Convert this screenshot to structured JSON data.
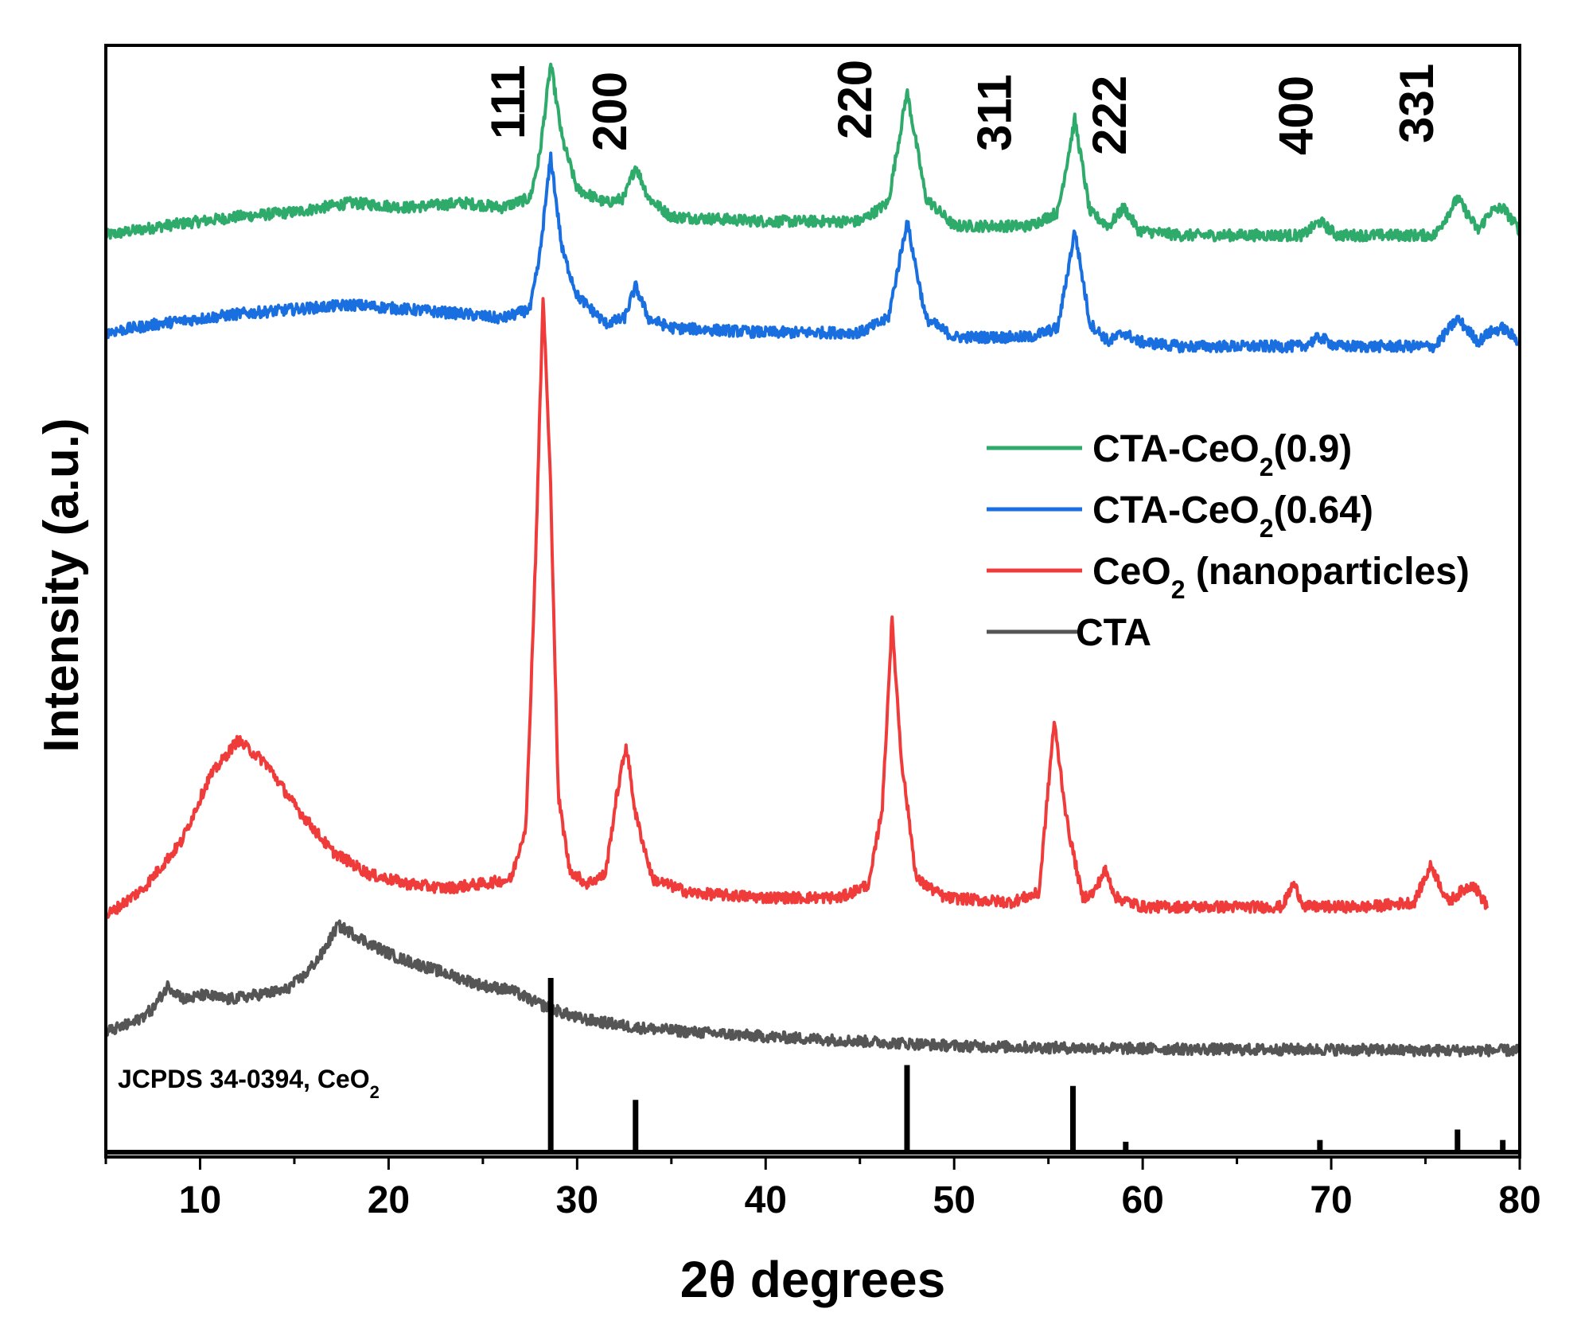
{
  "chart_data": {
    "type": "line",
    "title": "",
    "xlabel": "2θ degrees",
    "ylabel": "Intensity (a.u.)",
    "xlim": [
      5,
      80
    ],
    "ylim": [
      0,
      12
    ],
    "xticks": [
      10,
      20,
      30,
      40,
      50,
      60,
      70,
      80
    ],
    "xtick_labels": [
      "10",
      "20",
      "30",
      "40",
      "50",
      "60",
      "70",
      "80"
    ],
    "y_tick_labels_shown": false,
    "legend_position": "right",
    "hkl_labels": [
      {
        "label": "111",
        "x": 27.2
      },
      {
        "label": "200",
        "x": 32.6
      },
      {
        "label": "220",
        "x": 45.6
      },
      {
        "label": "311",
        "x": 53.0
      },
      {
        "label": "222",
        "x": 59.1
      },
      {
        "label": "400",
        "x": 69.0
      },
      {
        "label": "331",
        "x": 75.4
      }
    ],
    "series": [
      {
        "name": "CTA-CeO2(0.9)",
        "legend_base": "CTA-CeO",
        "legend_sub": "2",
        "legend_suffix": "(0.9)",
        "color": "#2eaa6a",
        "x": [
          5,
          8,
          12,
          15,
          18,
          21,
          24,
          26,
          27.5,
          28.0,
          28.6,
          29.2,
          30,
          31.5,
          32.5,
          33.1,
          33.8,
          35,
          40,
          45,
          46.5,
          47.5,
          48.5,
          50,
          54,
          55.5,
          56.4,
          57.2,
          58.2,
          59.0,
          59.8,
          62,
          66,
          68.5,
          69.4,
          70.3,
          73,
          75.5,
          76.7,
          77.8,
          78.4,
          79.1,
          80
        ],
        "values": [
          9.95,
          10.05,
          10.15,
          10.2,
          10.3,
          10.25,
          10.3,
          10.25,
          10.35,
          10.8,
          11.8,
          11.0,
          10.45,
          10.3,
          10.35,
          10.7,
          10.35,
          10.15,
          10.1,
          10.1,
          10.3,
          11.5,
          10.35,
          10.05,
          10.05,
          10.2,
          11.2,
          10.2,
          10.05,
          10.25,
          10.0,
          9.95,
          9.95,
          9.95,
          10.1,
          9.95,
          9.95,
          9.95,
          10.35,
          10.0,
          10.2,
          10.25,
          10.0
        ]
      },
      {
        "name": "CTA-CeO2(0.64)",
        "legend_base": "CTA-CeO",
        "legend_sub": "2",
        "legend_suffix": "(0.64)",
        "color": "#1a6fe0",
        "x": [
          5,
          8,
          12,
          15,
          18,
          21,
          24,
          26,
          27.5,
          28.0,
          28.6,
          29.2,
          30,
          31.5,
          32.5,
          33.1,
          33.8,
          35,
          40,
          45,
          46.5,
          47.5,
          48.5,
          50,
          54,
          55.5,
          56.4,
          57.2,
          58.2,
          59.0,
          59.8,
          62,
          66,
          68.5,
          69.4,
          70.3,
          73,
          75.5,
          76.7,
          77.8,
          78.4,
          79.1,
          80
        ],
        "values": [
          8.9,
          9.0,
          9.1,
          9.15,
          9.2,
          9.15,
          9.1,
          9.05,
          9.15,
          9.7,
          10.8,
          9.8,
          9.3,
          9.0,
          9.05,
          9.4,
          9.05,
          8.95,
          8.9,
          8.9,
          9.05,
          10.1,
          9.05,
          8.85,
          8.85,
          8.95,
          10.0,
          9.0,
          8.8,
          8.9,
          8.8,
          8.75,
          8.75,
          8.75,
          8.85,
          8.75,
          8.75,
          8.75,
          9.05,
          8.8,
          8.9,
          8.95,
          8.8
        ]
      },
      {
        "name": "CeO2 (nanoparticles)",
        "legend_base": "CeO",
        "legend_sub": "2",
        "legend_suffix": " (nanoparticles)",
        "color": "#f03b3b",
        "x": [
          5,
          7,
          9,
          10.5,
          12,
          13.5,
          15,
          17,
          19,
          21,
          23,
          25,
          26.5,
          27.3,
          27.8,
          28.2,
          28.6,
          29.0,
          29.6,
          30.5,
          31.5,
          32.1,
          32.6,
          33.1,
          34,
          36,
          40,
          44,
          45.5,
          46.2,
          46.7,
          47.2,
          48,
          49.5,
          53,
          54.5,
          55.3,
          56.0,
          56.8,
          57.4,
          58.0,
          58.6,
          60,
          65,
          67.4,
          68.0,
          68.6,
          72,
          74.4,
          75.3,
          76.2,
          76.8,
          77.5,
          78.3
        ],
        "values": [
          2.6,
          2.9,
          3.4,
          4.1,
          4.5,
          4.25,
          3.8,
          3.3,
          3.05,
          2.95,
          2.9,
          2.95,
          3.0,
          3.6,
          6.5,
          9.3,
          7.2,
          3.9,
          3.1,
          2.95,
          3.05,
          3.9,
          4.45,
          3.7,
          3.0,
          2.85,
          2.8,
          2.8,
          2.95,
          3.8,
          5.8,
          4.3,
          3.0,
          2.8,
          2.75,
          2.85,
          4.7,
          3.6,
          2.8,
          2.85,
          3.1,
          2.8,
          2.7,
          2.7,
          2.7,
          2.95,
          2.7,
          2.7,
          2.75,
          3.15,
          2.75,
          2.85,
          2.95,
          2.7
        ]
      },
      {
        "name": "CTA",
        "legend_base": "CTA",
        "legend_sub": "",
        "legend_suffix": "",
        "color": "#555555",
        "x": [
          5,
          6.5,
          7.5,
          8.3,
          9.2,
          10.2,
          11.5,
          13,
          14.5,
          15.5,
          16.5,
          17.3,
          18.2,
          19,
          20.5,
          22,
          23.5,
          25,
          26.5,
          28,
          30,
          33,
          36,
          40,
          45,
          50,
          55,
          60,
          65,
          70,
          75,
          80
        ],
        "values": [
          1.35,
          1.45,
          1.6,
          1.85,
          1.7,
          1.75,
          1.7,
          1.75,
          1.8,
          1.95,
          2.2,
          2.5,
          2.4,
          2.3,
          2.15,
          2.05,
          1.95,
          1.85,
          1.8,
          1.65,
          1.5,
          1.4,
          1.35,
          1.3,
          1.25,
          1.2,
          1.18,
          1.17,
          1.16,
          1.16,
          1.15,
          1.15
        ]
      }
    ],
    "reference": {
      "label_base": "JCPDS 34-0394, CeO",
      "label_sub": "2",
      "color": "#000000",
      "lines": [
        {
          "x": 28.6,
          "intensity": 1.0
        },
        {
          "x": 33.1,
          "intensity": 0.3
        },
        {
          "x": 47.5,
          "intensity": 0.5
        },
        {
          "x": 56.3,
          "intensity": 0.38
        },
        {
          "x": 59.1,
          "intensity": 0.06
        },
        {
          "x": 69.4,
          "intensity": 0.07
        },
        {
          "x": 76.7,
          "intensity": 0.13
        },
        {
          "x": 79.1,
          "intensity": 0.07
        }
      ]
    }
  }
}
